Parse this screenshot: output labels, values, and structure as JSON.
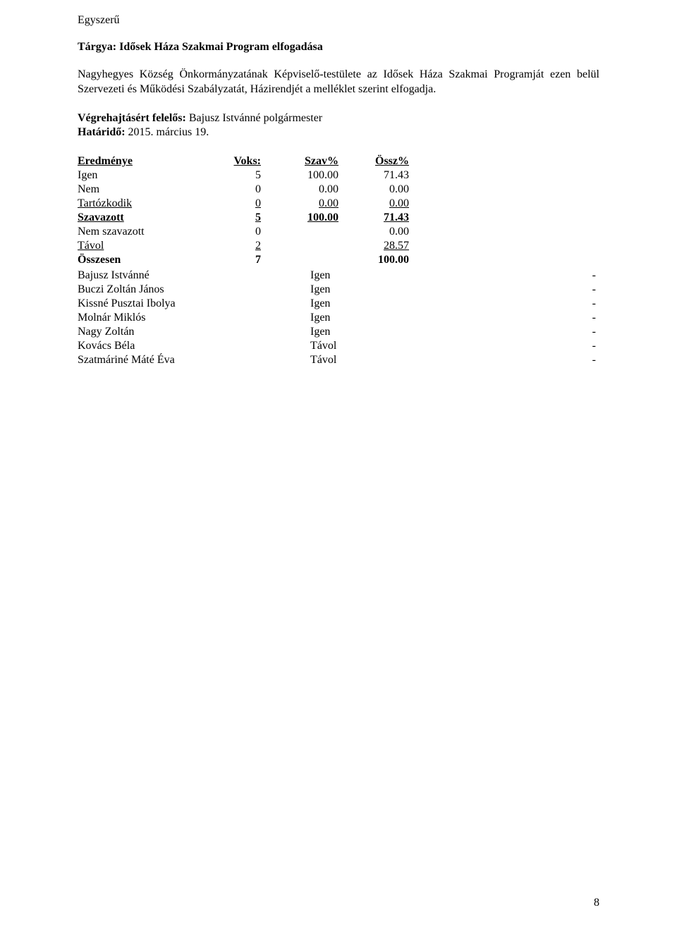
{
  "header": {
    "simplicity": "Egyszerű",
    "subject_label": "Tárgya:",
    "subject_text": "Idősek Háza Szakmai Program elfogadása"
  },
  "body": {
    "paragraph": "Nagyhegyes Község Önkormányzatának Képviselő-testülete az Idősek Háza Szakmai Programját ezen belül Szervezeti és Működési Szabályzatát, Házirendjét a melléklet szerint elfogadja."
  },
  "responsibility": {
    "responsible_label": "Végrehajtásért felelős:",
    "responsible_name": "Bajusz Istvánné polgármester",
    "deadline_label": "Határidő:",
    "deadline_value": "2015. március 19."
  },
  "results": {
    "headers": {
      "label": "Eredménye",
      "voks": "Voks:",
      "szav": "Szav%",
      "ossz": "Össz%"
    },
    "rows": [
      {
        "label": "Igen",
        "voks": "5",
        "szav": "100.00",
        "ossz": "71.43",
        "style": "normal"
      },
      {
        "label": "Nem",
        "voks": "0",
        "szav": "0.00",
        "ossz": "0.00",
        "style": "normal"
      },
      {
        "label": "Tartózkodik",
        "voks": "0",
        "szav": "0.00",
        "ossz": "0.00",
        "style": "underline"
      },
      {
        "label": "Szavazott",
        "voks": "5",
        "szav": "100.00",
        "ossz": "71.43",
        "style": "bold-underline"
      },
      {
        "label": "Nem szavazott",
        "voks": "0",
        "szav": "",
        "ossz": "0.00",
        "style": "normal"
      },
      {
        "label": "Távol",
        "voks": "2",
        "szav": "",
        "ossz": "28.57",
        "style": "underline"
      },
      {
        "label": "Összesen",
        "voks": "7",
        "szav": "",
        "ossz": "100.00",
        "style": "bold"
      }
    ]
  },
  "persons": [
    {
      "name": "Bajusz Istvánné",
      "vote": "Igen",
      "dash": "-"
    },
    {
      "name": "Buczi Zoltán János",
      "vote": "Igen",
      "dash": "-"
    },
    {
      "name": "Kissné Pusztai Ibolya",
      "vote": "Igen",
      "dash": "-"
    },
    {
      "name": "Molnár Miklós",
      "vote": "Igen",
      "dash": "-"
    },
    {
      "name": "Nagy Zoltán",
      "vote": "Igen",
      "dash": "-"
    },
    {
      "name": "Kovács Béla",
      "vote": "Távol",
      "dash": "-"
    },
    {
      "name": "Szatmáriné Máté Éva",
      "vote": "Távol",
      "dash": "-"
    }
  ],
  "page_number": "8",
  "colors": {
    "text": "#000000",
    "background": "#ffffff"
  },
  "typography": {
    "font_family": "Times New Roman",
    "font_size_pt": 12
  }
}
